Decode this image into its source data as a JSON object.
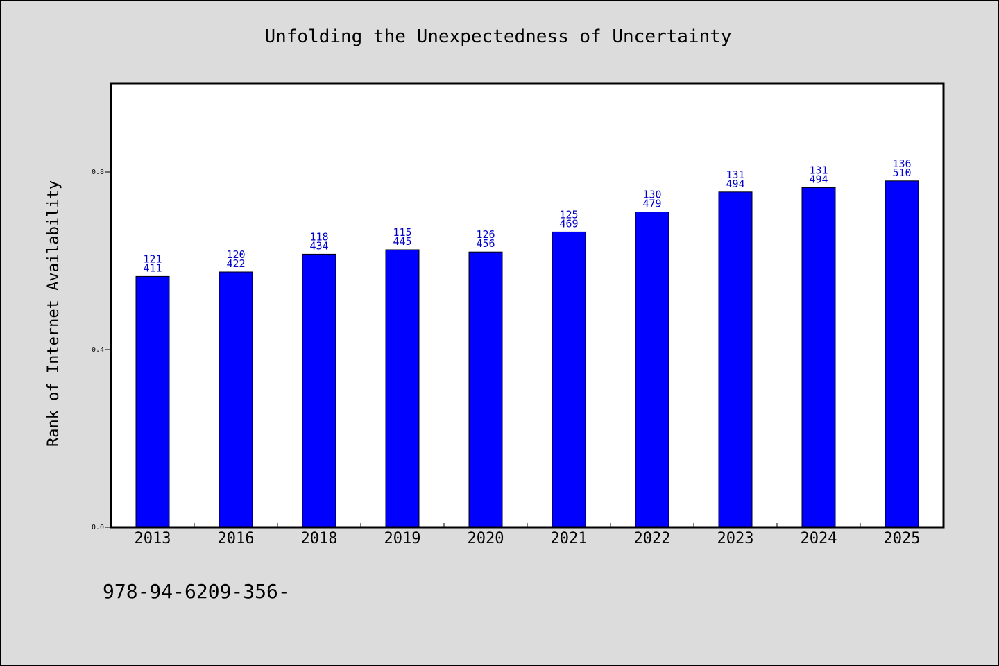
{
  "chart_data": {
    "type": "bar",
    "title": "Unfolding the Unexpectedness of Uncertainty",
    "xlabel": "",
    "ylabel": "Rank of Internet Availability",
    "categories": [
      "2013",
      "2016",
      "2018",
      "2019",
      "2020",
      "2021",
      "2022",
      "2023",
      "2024",
      "2025"
    ],
    "values": [
      0.565,
      0.575,
      0.615,
      0.625,
      0.62,
      0.665,
      0.71,
      0.755,
      0.765,
      0.78
    ],
    "bar_labels_top": [
      "121",
      "120",
      "118",
      "115",
      "126",
      "125",
      "130",
      "131",
      "131",
      "136"
    ],
    "bar_labels_bottom": [
      "411",
      "422",
      "434",
      "445",
      "456",
      "469",
      "479",
      "494",
      "494",
      "510"
    ],
    "ylim": [
      0.0,
      1.0
    ],
    "yticks": [
      "0.0",
      "0.4",
      "0.8"
    ],
    "ytick_values": [
      0.0,
      0.4,
      0.8
    ],
    "grid": false,
    "bar_color": "#0000ff",
    "label_color": "#0000cc"
  },
  "footer": {
    "text": "978-94-6209-356-"
  }
}
